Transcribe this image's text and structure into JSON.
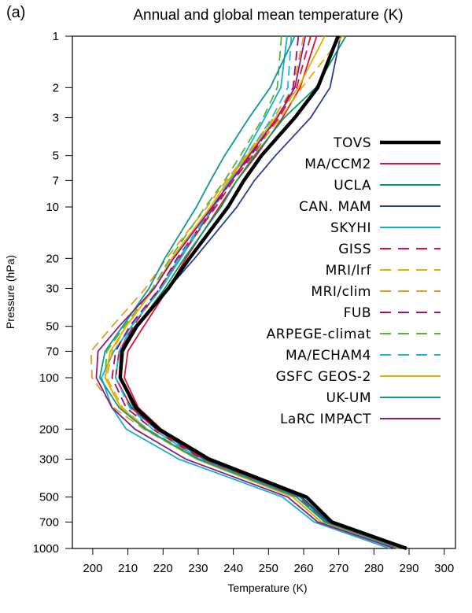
{
  "chart_data": {
    "type": "line",
    "panel_label": "(a)",
    "title": "Annual and global mean temperature (K)",
    "xlabel": "Temperature (K)",
    "ylabel": "Pressure (hPa)",
    "xlim": [
      194.2,
      303.2
    ],
    "ylim": [
      1000,
      1
    ],
    "yscale": "log",
    "grid": false,
    "legend_position": "right-center",
    "x_ticks": [
      200,
      210,
      220,
      230,
      240,
      250,
      260,
      270,
      280,
      290,
      300
    ],
    "x_tick_labels": [
      "200",
      "210",
      "220",
      "230",
      "240",
      "250",
      "260",
      "270",
      "280",
      "290",
      "300"
    ],
    "y_ticks": [
      1,
      2,
      3,
      5,
      7,
      10,
      20,
      30,
      50,
      70,
      100,
      200,
      300,
      500,
      700,
      1000
    ],
    "y_tick_labels": [
      "1",
      "2",
      "3",
      "5",
      "7",
      "10",
      "20",
      "30",
      "50",
      "70",
      "100",
      "200",
      "300",
      "500",
      "700",
      "1000"
    ],
    "pressure_levels": [
      1,
      2,
      3,
      5,
      7,
      10,
      20,
      30,
      50,
      70,
      100,
      150,
      200,
      300,
      500,
      700,
      1000
    ],
    "series": [
      {
        "name": "TOVS",
        "color": "#000000",
        "dash": "solid",
        "weight": "thick",
        "values": [
          269.8,
          264.0,
          257.5,
          248.0,
          243.0,
          238.5,
          227.5,
          221.5,
          212.5,
          208.3,
          207.8,
          212.3,
          218.8,
          233.1,
          260.8,
          268.0,
          289.3
        ]
      },
      {
        "name": "MA/CCM2",
        "color": "#e0103a",
        "dash": "solid",
        "weight": "normal",
        "values": [
          263.7,
          259.0,
          254.0,
          246.5,
          241.0,
          236.0,
          226.5,
          221.5,
          214.5,
          210.0,
          209.0,
          213.0,
          219.5,
          232.5,
          259.5,
          267.0,
          288.5
        ]
      },
      {
        "name": "UCLA",
        "color": "#00a060",
        "dash": "solid",
        "weight": "normal",
        "values": [
          272.0,
          263.5,
          254.5,
          246.0,
          241.0,
          236.5,
          226.0,
          220.5,
          212.5,
          208.8,
          208.0,
          211.5,
          218.0,
          231.5,
          259.0,
          266.5,
          287.5
        ]
      },
      {
        "name": "CAN. MAM",
        "color": "#2a3c98",
        "dash": "solid",
        "weight": "normal",
        "values": [
          270.5,
          267.5,
          262.0,
          252.0,
          246.0,
          241.0,
          229.0,
          221.5,
          212.0,
          207.5,
          206.5,
          211.0,
          218.0,
          232.0,
          259.5,
          267.0,
          288.0
        ]
      },
      {
        "name": "SKYHI",
        "color": "#10b0d0",
        "dash": "solid",
        "weight": "normal",
        "values": [
          255.3,
          253.5,
          249.0,
          243.0,
          239.0,
          234.5,
          225.0,
          219.5,
          211.0,
          206.0,
          202.5,
          205.5,
          209.5,
          224.5,
          254.0,
          263.0,
          284.5
        ]
      },
      {
        "name": "GISS",
        "color": "#e0103a",
        "dash": "dashed",
        "weight": "normal",
        "values": [
          262.0,
          258.0,
          253.0,
          245.5,
          240.0,
          235.0,
          224.5,
          219.0,
          211.5,
          207.5,
          206.5,
          211.0,
          218.0,
          231.5,
          258.5,
          266.0,
          288.0
        ]
      },
      {
        "name": "MRI/lrf",
        "color": "#e0b000",
        "dash": "dashed",
        "weight": "normal",
        "values": [
          271.0,
          259.5,
          253.5,
          245.0,
          239.5,
          234.0,
          223.0,
          217.5,
          209.5,
          205.5,
          204.0,
          208.5,
          215.5,
          229.5,
          257.0,
          265.0,
          287.0
        ]
      },
      {
        "name": "MRI/clim",
        "color": "#e89a20",
        "dash": "dashed",
        "weight": "normal",
        "values": [
          260.0,
          257.0,
          251.5,
          243.5,
          238.0,
          232.5,
          221.0,
          215.0,
          205.5,
          199.5,
          199.8,
          206.0,
          214.5,
          229.5,
          257.0,
          265.0,
          287.0
        ]
      },
      {
        "name": "FUB",
        "color": "#9a1070",
        "dash": "dashed",
        "weight": "normal",
        "values": [
          258.5,
          257.0,
          252.5,
          245.0,
          239.5,
          234.5,
          224.0,
          219.0,
          210.5,
          206.5,
          205.5,
          209.5,
          217.0,
          231.0,
          258.0,
          266.0,
          287.5
        ]
      },
      {
        "name": "ARPEGE-climat",
        "color": "#50b830",
        "dash": "dashed",
        "weight": "normal",
        "values": [
          253.7,
          252.5,
          248.5,
          242.0,
          237.5,
          232.0,
          222.0,
          217.0,
          209.0,
          204.0,
          203.5,
          208.0,
          215.5,
          230.5,
          258.0,
          266.0,
          287.5
        ]
      },
      {
        "name": "MA/ECHAM4",
        "color": "#20b8d8",
        "dash": "dashed",
        "weight": "normal",
        "values": [
          256.5,
          255.5,
          251.0,
          244.0,
          239.0,
          234.0,
          224.5,
          219.5,
          211.0,
          207.5,
          206.5,
          210.5,
          217.0,
          230.5,
          258.0,
          266.0,
          287.0
        ]
      },
      {
        "name": "GSFC GEOS-2",
        "color": "#e0b000",
        "dash": "solid",
        "weight": "normal",
        "values": [
          266.0,
          258.5,
          252.0,
          244.0,
          238.5,
          233.5,
          222.5,
          217.5,
          209.5,
          205.0,
          203.5,
          208.0,
          215.0,
          229.5,
          257.0,
          265.0,
          287.0
        ]
      },
      {
        "name": "UK-UM",
        "color": "#109890",
        "dash": "solid",
        "weight": "normal",
        "values": [
          257.5,
          250.5,
          244.5,
          237.5,
          233.5,
          229.5,
          220.5,
          216.0,
          208.5,
          203.5,
          202.0,
          207.5,
          215.0,
          230.0,
          258.0,
          266.0,
          287.5
        ]
      },
      {
        "name": "LaRC IMPACT",
        "color": "#8a1a88",
        "dash": "solid",
        "weight": "normal",
        "values": [
          260.5,
          257.5,
          252.5,
          244.5,
          239.5,
          234.0,
          223.0,
          217.5,
          207.5,
          201.5,
          201.0,
          205.5,
          212.0,
          226.5,
          255.5,
          264.0,
          286.0
        ]
      }
    ]
  }
}
